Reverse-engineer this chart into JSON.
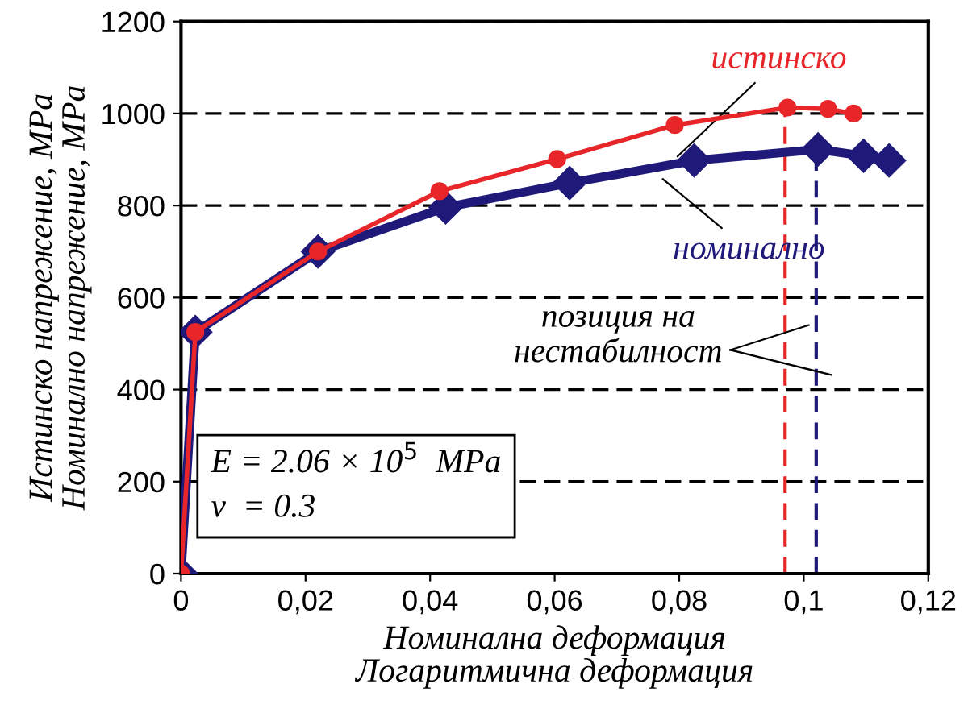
{
  "chart_data": {
    "type": "line",
    "xlabel": "Номинална деформация\nЛогаритмична деформация",
    "ylabel": "Истинско напрежение, MPa\nНоминално напрежение, MPa",
    "series": [
      {
        "name": "истинско",
        "color": "#e8262a",
        "marker": "circle",
        "x": [
          0,
          0.0023,
          0.022,
          0.0415,
          0.0604,
          0.0793,
          0.0974,
          0.1039,
          0.108
        ],
        "values": [
          0,
          525,
          700,
          831,
          901,
          975,
          1013,
          1010,
          1000
        ]
      },
      {
        "name": "номинално",
        "color": "#1f1a7a",
        "marker": "diamond",
        "x": [
          0,
          0.0023,
          0.022,
          0.0425,
          0.0624,
          0.0824,
          0.1023,
          0.1096,
          0.1137
        ],
        "values": [
          0,
          525,
          700,
          796,
          849,
          898,
          922,
          908,
          898
        ]
      }
    ],
    "xlim": [
      0,
      0.12
    ],
    "xticks": [
      0,
      {
        "value": 0.02,
        "label": "0,02"
      },
      {
        "value": 0.04,
        "label": "0,04"
      },
      {
        "value": 0.06,
        "label": "0,06"
      },
      {
        "value": 0.08,
        "label": "0,08"
      },
      {
        "value": 0.1,
        "label": "0,1"
      },
      {
        "value": 0.12,
        "label": "0,12"
      }
    ],
    "ylim": [
      0,
      1200
    ],
    "yticks": [
      0,
      200,
      400,
      600,
      800,
      1000,
      1200
    ],
    "grid": "y",
    "ref_lines": [
      {
        "axis": "x",
        "value": 0.097,
        "color": "#e8262a",
        "line_style": "dashed"
      },
      {
        "axis": "x",
        "value": 0.102,
        "color": "#1f1a7a",
        "line_style": "dashed"
      }
    ],
    "annotations": [
      "позиция на\nнестабилност",
      "E = 2.06 × 10$^{5}$  MPa\nν  = 0.3"
    ]
  }
}
